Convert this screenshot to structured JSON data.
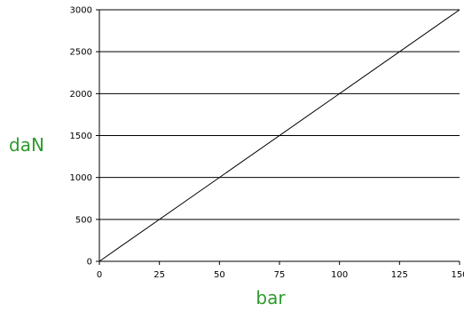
{
  "chart_data": {
    "type": "line",
    "title": "",
    "xlabel": "bar",
    "ylabel": "daN",
    "xlim": [
      0,
      150
    ],
    "ylim": [
      0,
      3000
    ],
    "x_ticks": [
      "0",
      "25",
      "50",
      "75",
      "100",
      "125",
      "150"
    ],
    "y_ticks": [
      "0",
      "500",
      "1000",
      "1500",
      "2000",
      "2500",
      "3000"
    ],
    "grid": "horizontal",
    "series": [
      {
        "x": [
          0,
          150
        ],
        "y": [
          0,
          3000
        ]
      }
    ],
    "colors": {
      "axis_label": "#2e9a2e",
      "line": "#000000",
      "grid": "#000000"
    }
  }
}
